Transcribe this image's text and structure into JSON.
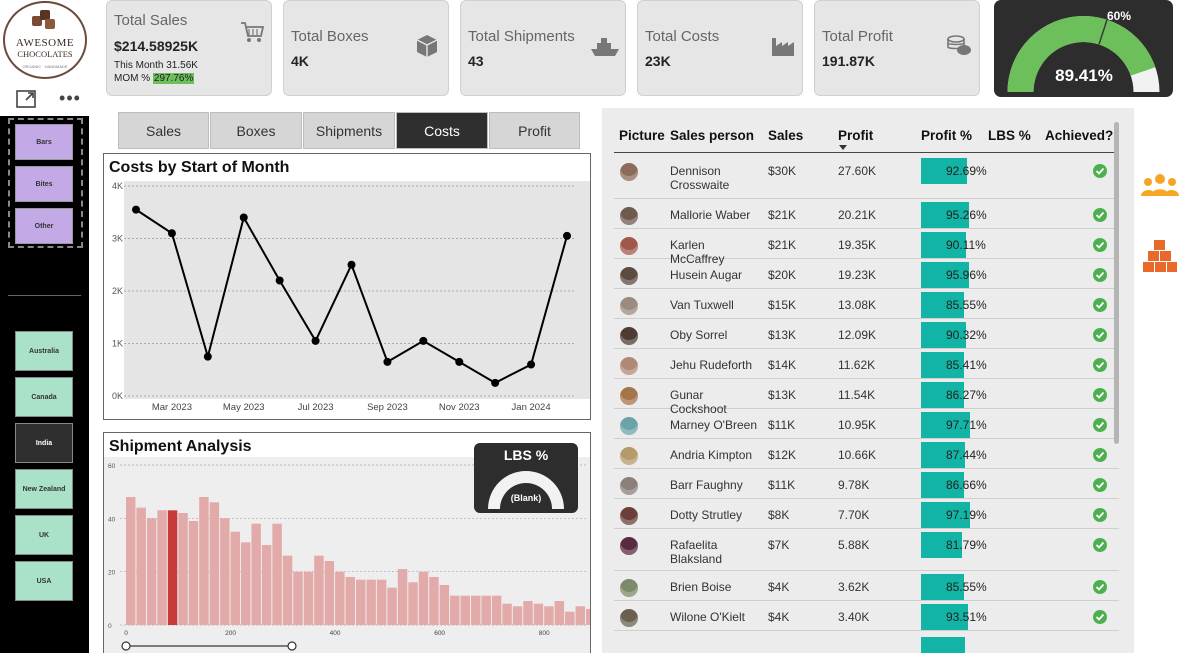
{
  "logo": {
    "line1": "AWESOME",
    "line2": "CHOCOLATES",
    "tagline": "ORGANIC · HANDMADE"
  },
  "categories": [
    "Bars",
    "Bites",
    "Other"
  ],
  "geographies": [
    {
      "label": "Australia",
      "selected": false
    },
    {
      "label": "Canada",
      "selected": false
    },
    {
      "label": "India",
      "selected": true
    },
    {
      "label": "New Zealand",
      "selected": false
    },
    {
      "label": "UK",
      "selected": false
    },
    {
      "label": "USA",
      "selected": false
    }
  ],
  "kpis": {
    "sales": {
      "title": "Total Sales",
      "value": "$214.58925K",
      "this_month": "This Month 31.56K",
      "mom_label": "MOM %",
      "mom_value": "297.76%"
    },
    "boxes": {
      "title": "Total Boxes",
      "value": "4K"
    },
    "shipments": {
      "title": "Total Shipments",
      "value": "43"
    },
    "costs": {
      "title": "Total Costs",
      "value": "23K"
    },
    "profit": {
      "title": "Total Profit",
      "value": "191.87K"
    }
  },
  "profit_gauge": {
    "value_label": "89.41%",
    "value": 0.8941,
    "target_label": "60%",
    "target": 0.6,
    "colors": {
      "fill": "#6cbf5a",
      "track": "#f2f2f2",
      "bg": "#2d2d2d"
    }
  },
  "tabs": [
    {
      "label": "Sales",
      "selected": false
    },
    {
      "label": "Boxes",
      "selected": false
    },
    {
      "label": "Shipments",
      "selected": false
    },
    {
      "label": "Costs",
      "selected": true
    },
    {
      "label": "Profit",
      "selected": false
    }
  ],
  "costs_chart": {
    "title": "Costs by Start of Month"
  },
  "shipment_chart": {
    "title": "Shipment Analysis"
  },
  "lbs_gauge": {
    "title": "LBS %",
    "value_label": "(Blank)"
  },
  "chart_data": [
    {
      "type": "line",
      "title": "Costs by Start of Month",
      "x": [
        "2023-02",
        "2023-03",
        "2023-04",
        "2023-05",
        "2023-06",
        "2023-07",
        "2023-08",
        "2023-09",
        "2023-10",
        "2023-11",
        "2023-12",
        "2024-01",
        "2024-02"
      ],
      "values": [
        3550,
        3100,
        750,
        3400,
        2200,
        1050,
        2500,
        650,
        1050,
        650,
        250,
        600,
        3050
      ],
      "x_tick_labels": [
        "Mar 2023",
        "May 2023",
        "Jul 2023",
        "Sep 2023",
        "Nov 2023",
        "Jan 2024"
      ],
      "y_tick_labels": [
        "0K",
        "1K",
        "2K",
        "3K",
        "4K"
      ],
      "ylim": [
        0,
        4000
      ],
      "grid": true,
      "colors": {
        "line": "#000000"
      }
    },
    {
      "type": "bar",
      "title": "Shipment Analysis",
      "x_tick_labels": [
        "0",
        "200",
        "400",
        "600",
        "800"
      ],
      "y_tick_labels": [
        "0",
        "20",
        "40",
        "60"
      ],
      "ylim": [
        0,
        60
      ],
      "xlim": [
        0,
        880
      ],
      "bin_width": 20,
      "highlighted_bin": 4,
      "values": [
        48,
        44,
        40,
        43,
        43,
        42,
        39,
        48,
        46,
        40,
        35,
        31,
        38,
        30,
        38,
        26,
        20,
        20,
        26,
        24,
        20,
        18,
        17,
        17,
        17,
        14,
        21,
        16,
        20,
        18,
        15,
        11,
        11,
        11,
        11,
        11,
        8,
        7,
        9,
        8,
        7,
        9,
        5,
        7,
        6,
        6,
        5,
        5,
        4,
        3,
        2
      ],
      "grid": true,
      "colors": {
        "bar": "#e3aaaa",
        "highlight": "#c83a3a"
      }
    }
  ],
  "table": {
    "headers": [
      "Picture",
      "Sales person",
      "Sales",
      "Profit",
      "Profit %",
      "LBS %",
      "Achieved?"
    ],
    "rows": [
      {
        "name": "Dennison Crosswaite",
        "sales": "$30K",
        "profit": "27.60K",
        "pct_label": "92.69%",
        "pct": 0.9269,
        "color": "#8d6b5a"
      },
      {
        "name": "Mallorie Waber",
        "sales": "$21K",
        "profit": "20.21K",
        "pct_label": "95.26%",
        "pct": 0.9526,
        "color": "#6f5a4e"
      },
      {
        "name": "Karlen McCaffrey",
        "sales": "$21K",
        "profit": "19.35K",
        "pct_label": "90.11%",
        "pct": 0.9011,
        "color": "#a0584a"
      },
      {
        "name": "Husein Augar",
        "sales": "$20K",
        "profit": "19.23K",
        "pct_label": "95.96%",
        "pct": 0.9596,
        "color": "#5d4a40"
      },
      {
        "name": "Van Tuxwell",
        "sales": "$15K",
        "profit": "13.08K",
        "pct_label": "85.55%",
        "pct": 0.8555,
        "color": "#9a8a80"
      },
      {
        "name": "Oby Sorrel",
        "sales": "$13K",
        "profit": "12.09K",
        "pct_label": "90.32%",
        "pct": 0.9032,
        "color": "#4e3c33"
      },
      {
        "name": "Jehu Rudeforth",
        "sales": "$14K",
        "profit": "11.62K",
        "pct_label": "85.41%",
        "pct": 0.8541,
        "color": "#b08878"
      },
      {
        "name": "Gunar Cockshoot",
        "sales": "$13K",
        "profit": "11.54K",
        "pct_label": "86.27%",
        "pct": 0.8627,
        "color": "#a5754a"
      },
      {
        "name": "Marney O'Breen",
        "sales": "$11K",
        "profit": "10.95K",
        "pct_label": "97.71%",
        "pct": 0.9771,
        "color": "#6aa3a8"
      },
      {
        "name": "Andria Kimpton",
        "sales": "$12K",
        "profit": "10.66K",
        "pct_label": "87.44%",
        "pct": 0.8744,
        "color": "#b59a6a"
      },
      {
        "name": "Barr Faughny",
        "sales": "$11K",
        "profit": "9.78K",
        "pct_label": "86.66%",
        "pct": 0.8666,
        "color": "#8a7f7a"
      },
      {
        "name": "Dotty Strutley",
        "sales": "$8K",
        "profit": "7.70K",
        "pct_label": "97.19%",
        "pct": 0.9719,
        "color": "#6a3f38"
      },
      {
        "name": "Rafaelita Blaksland",
        "sales": "$7K",
        "profit": "5.88K",
        "pct_label": "81.79%",
        "pct": 0.8179,
        "color": "#5a2a40"
      },
      {
        "name": "Brien Boise",
        "sales": "$4K",
        "profit": "3.62K",
        "pct_label": "85.55%",
        "pct": 0.8555,
        "color": "#7d8a6a"
      },
      {
        "name": "Wilone O'Kielt",
        "sales": "$4K",
        "profit": "3.40K",
        "pct_label": "93.51%",
        "pct": 0.9351,
        "color": "#6a6050"
      }
    ],
    "colors": {
      "bar": "#12b5a5",
      "check": "#4caf50"
    }
  },
  "side_icons": [
    "people-group-icon",
    "boxes-stack-icon"
  ]
}
